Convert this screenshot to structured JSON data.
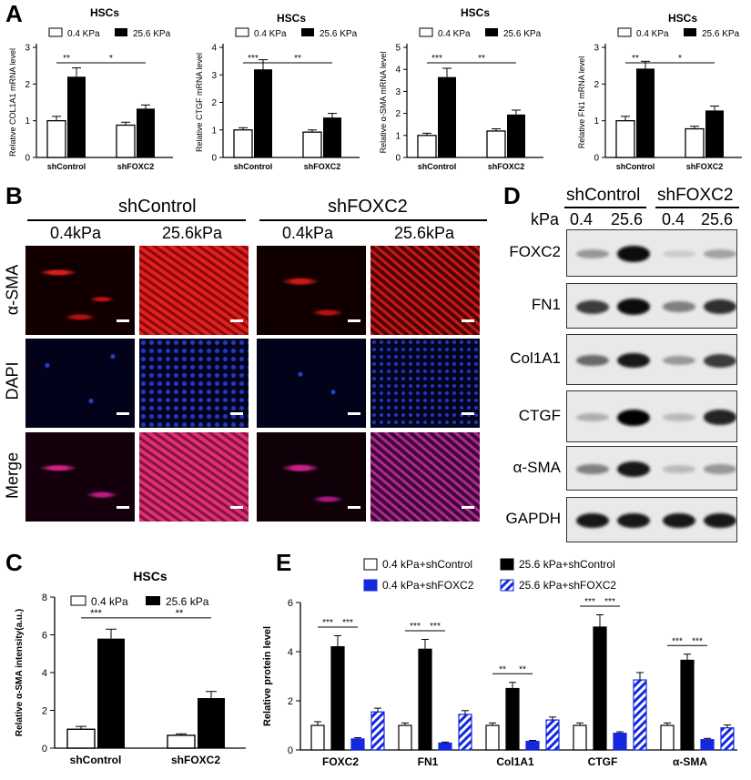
{
  "panelA": {
    "letter": "A",
    "charts": [
      {
        "title": "HSCs",
        "ylabel": "Relative COL1A1 mRNA level",
        "ymax": 3,
        "ticks": [
          "0",
          "1",
          "2",
          "3"
        ],
        "categories": [
          "shControl",
          "shFOXC2"
        ],
        "open": [
          1.0,
          0.88
        ],
        "filled": [
          2.2,
          1.33
        ],
        "err_open": [
          0.12,
          0.08
        ],
        "err_filled": [
          0.24,
          0.1
        ],
        "sig1": "**",
        "sig2": "*"
      },
      {
        "title": "HSCs",
        "ylabel": "Relative CTGF mRNA level",
        "ymax": 4,
        "ticks": [
          "0",
          "1",
          "2",
          "3",
          "4"
        ],
        "categories": [
          "shControl",
          "shFOXC2"
        ],
        "open": [
          1.0,
          0.92
        ],
        "filled": [
          3.2,
          1.45
        ],
        "err_open": [
          0.08,
          0.08
        ],
        "err_filled": [
          0.35,
          0.15
        ],
        "sig1": "***",
        "sig2": "**"
      },
      {
        "title": "HSCs",
        "ylabel": "Relative α-SMA mRNA level",
        "ymax": 5,
        "ticks": [
          "0",
          "1",
          "2",
          "3",
          "4",
          "5"
        ],
        "categories": [
          "shControl",
          "shFOXC2"
        ],
        "open": [
          1.0,
          1.2
        ],
        "filled": [
          3.65,
          1.95
        ],
        "err_open": [
          0.1,
          0.1
        ],
        "err_filled": [
          0.4,
          0.2
        ],
        "sig1": "***",
        "sig2": "**"
      },
      {
        "title": "HSCs",
        "ylabel": "Relative FN1 mRNA level",
        "ymax": 3,
        "ticks": [
          "0",
          "1",
          "2",
          "3"
        ],
        "categories": [
          "shControl",
          "shFOXC2"
        ],
        "open": [
          1.0,
          0.78
        ],
        "filled": [
          2.42,
          1.28
        ],
        "err_open": [
          0.12,
          0.07
        ],
        "err_filled": [
          0.2,
          0.12
        ],
        "sig1": "**",
        "sig2": "*"
      }
    ],
    "legend_open": "0.4 KPa",
    "legend_filled": "25.6 KPa"
  },
  "panelB": {
    "letter": "B",
    "group1": "shControl",
    "group2": "shFOXC2",
    "cols": [
      "0.4kPa",
      "25.6kPa",
      "0.4kPa",
      "25.6kPa"
    ],
    "rows": [
      "α-SMA",
      "DAPI",
      "Merge"
    ]
  },
  "panelC": {
    "letter": "C",
    "title": "HSCs",
    "legend_open": "0.4 kPa",
    "legend_filled": "25.6 kPa",
    "ylabel": "Relative α-SMA  intensity(a.u.)",
    "ticks": [
      "0",
      "2",
      "4",
      "6",
      "8"
    ],
    "sig1": "***",
    "sig2": "**"
  },
  "panelD": {
    "letter": "D",
    "group1": "shControl",
    "group2": "shFOXC2",
    "kpa_label": "kPa",
    "lanes": [
      "0.4",
      "25.6",
      "0.4",
      "25.6"
    ],
    "blots": [
      "FOXC2",
      "FN1",
      "Col1A1",
      "CTGF",
      "α-SMA",
      "GAPDH"
    ]
  },
  "panelE": {
    "letter": "E",
    "ylabel": "Relative  protein level",
    "ticks": [
      "0",
      "2",
      "4",
      "6"
    ],
    "legend": [
      "0.4 kPa+shControl",
      "25.6 kPa+shControl",
      "0.4 kPa+shFOXC2",
      "25.6 kPa+shFOXC2"
    ]
  },
  "colors": {
    "blue": "#1428e0",
    "black": "#000000"
  },
  "chart_data": [
    {
      "type": "bar",
      "title": "HSCs",
      "ylabel": "Relative COL1A1 mRNA level",
      "categories": [
        "shControl",
        "shFOXC2"
      ],
      "ylim": [
        0,
        3
      ],
      "series": [
        {
          "name": "0.4 KPa",
          "values": [
            1.0,
            0.88
          ]
        },
        {
          "name": "25.6 KPa",
          "values": [
            2.2,
            1.33
          ]
        }
      ]
    },
    {
      "type": "bar",
      "title": "HSCs",
      "ylabel": "Relative CTGF mRNA level",
      "categories": [
        "shControl",
        "shFOXC2"
      ],
      "ylim": [
        0,
        4
      ],
      "series": [
        {
          "name": "0.4 KPa",
          "values": [
            1.0,
            0.92
          ]
        },
        {
          "name": "25.6 KPa",
          "values": [
            3.2,
            1.45
          ]
        }
      ]
    },
    {
      "type": "bar",
      "title": "HSCs",
      "ylabel": "Relative α-SMA mRNA level",
      "categories": [
        "shControl",
        "shFOXC2"
      ],
      "ylim": [
        0,
        5
      ],
      "series": [
        {
          "name": "0.4 KPa",
          "values": [
            1.0,
            1.2
          ]
        },
        {
          "name": "25.6 KPa",
          "values": [
            3.65,
            1.95
          ]
        }
      ]
    },
    {
      "type": "bar",
      "title": "HSCs",
      "ylabel": "Relative FN1 mRNA level",
      "categories": [
        "shControl",
        "shFOXC2"
      ],
      "ylim": [
        0,
        3
      ],
      "series": [
        {
          "name": "0.4 KPa",
          "values": [
            1.0,
            0.78
          ]
        },
        {
          "name": "25.6 KPa",
          "values": [
            2.42,
            1.28
          ]
        }
      ]
    },
    {
      "type": "bar",
      "title": "HSCs",
      "ylabel": "Relative α-SMA  intensity(a.u.)",
      "categories": [
        "shControl",
        "shFOXC2"
      ],
      "ylim": [
        0,
        8
      ],
      "series": [
        {
          "name": "0.4 kPa",
          "values": [
            1.0,
            0.68
          ],
          "err": [
            0.15,
            0.08
          ]
        },
        {
          "name": "25.6 kPa",
          "values": [
            5.8,
            2.65
          ],
          "err": [
            0.5,
            0.35
          ]
        }
      ]
    },
    {
      "type": "bar",
      "ylabel": "Relative  protein level",
      "categories": [
        "FOXC2",
        "FN1",
        "Col1A1",
        "CTGF",
        "α-SMA"
      ],
      "ylim": [
        0,
        6
      ],
      "series": [
        {
          "name": "0.4 kPa+shControl",
          "values": [
            1.0,
            1.0,
            1.0,
            1.0,
            1.0
          ],
          "err": [
            0.15,
            0.1,
            0.1,
            0.1,
            0.1
          ]
        },
        {
          "name": "25.6 kPa+shControl",
          "values": [
            4.2,
            4.1,
            2.5,
            5.0,
            3.65
          ],
          "err": [
            0.45,
            0.4,
            0.25,
            0.5,
            0.25
          ]
        },
        {
          "name": "0.4 kPa+shFOXC2",
          "values": [
            0.45,
            0.28,
            0.35,
            0.68,
            0.42
          ],
          "err": [
            0.05,
            0.04,
            0.04,
            0.06,
            0.05
          ]
        },
        {
          "name": "25.6 kPa+shFOXC2",
          "values": [
            1.55,
            1.45,
            1.22,
            2.85,
            0.9
          ],
          "err": [
            0.15,
            0.15,
            0.12,
            0.3,
            0.12
          ]
        }
      ],
      "annotations": [
        [
          "***",
          "***"
        ],
        [
          "***",
          "***"
        ],
        [
          "**",
          "**"
        ],
        [
          "***",
          "***"
        ],
        [
          "***",
          "***"
        ]
      ]
    }
  ]
}
